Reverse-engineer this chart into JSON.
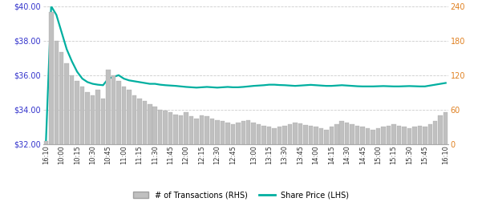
{
  "x_labels_sparse": [
    "16:10",
    "10:00",
    "10:15",
    "10:30",
    "10:45",
    "11:00",
    "11:15",
    "11:30",
    "11:45",
    "12:00",
    "12:15",
    "12:30",
    "12:45",
    "13:00",
    "13:15",
    "13:30",
    "13:45",
    "14:00",
    "14:15",
    "14:30",
    "14:45",
    "15:00",
    "15:15",
    "15:30",
    "15:45",
    "16:10"
  ],
  "share_price": [
    32.2,
    40.0,
    39.5,
    38.5,
    37.5,
    36.8,
    36.2,
    35.8,
    35.6,
    35.5,
    35.45,
    35.42,
    35.8,
    35.9,
    36.0,
    35.8,
    35.7,
    35.65,
    35.6,
    35.55,
    35.5,
    35.5,
    35.45,
    35.42,
    35.4,
    35.38,
    35.35,
    35.32,
    35.3,
    35.28,
    35.3,
    35.32,
    35.3,
    35.28,
    35.3,
    35.32,
    35.3,
    35.3,
    35.32,
    35.35,
    35.38,
    35.4,
    35.42,
    35.45,
    35.45,
    35.43,
    35.42,
    35.4,
    35.38,
    35.4,
    35.42,
    35.44,
    35.42,
    35.4,
    35.38,
    35.38,
    35.4,
    35.42,
    35.4,
    35.38,
    35.36,
    35.35,
    35.35,
    35.35,
    35.36,
    35.37,
    35.36,
    35.35,
    35.35,
    35.36,
    35.37,
    35.36,
    35.35,
    35.35,
    35.4,
    35.45,
    35.5,
    35.55
  ],
  "transactions": [
    5,
    230,
    180,
    160,
    140,
    120,
    110,
    100,
    90,
    85,
    95,
    80,
    130,
    120,
    110,
    100,
    95,
    85,
    80,
    75,
    70,
    65,
    60,
    58,
    55,
    52,
    50,
    55,
    48,
    45,
    50,
    48,
    45,
    42,
    40,
    38,
    35,
    38,
    40,
    42,
    38,
    35,
    32,
    30,
    28,
    30,
    32,
    35,
    38,
    36,
    34,
    32,
    30,
    28,
    25,
    30,
    35,
    40,
    38,
    35,
    32,
    30,
    28,
    25,
    28,
    30,
    32,
    35,
    32,
    30,
    28,
    30,
    32,
    30,
    35,
    40,
    50,
    55
  ],
  "price_ylim": [
    32.0,
    40.0
  ],
  "price_yticks": [
    32.0,
    34.0,
    36.0,
    38.0,
    40.0
  ],
  "price_yticklabels": [
    "$32.00",
    "$34.00",
    "$36.00",
    "$38.00",
    "$40.00"
  ],
  "trans_ylim": [
    0,
    240
  ],
  "trans_yticks": [
    0,
    60,
    120,
    180,
    240
  ],
  "line_color": "#00AFA0",
  "bar_color": "#C0C0C0",
  "bar_edge_color": "#A0A0A0",
  "grid_color": "#CCCCCC",
  "legend_bar_label": "# of Transactions (RHS)",
  "legend_line_label": "Share Price (LHS)",
  "background_color": "#FFFFFF",
  "lhs_label_color": "#3333CC",
  "rhs_label_color": "#E08020"
}
